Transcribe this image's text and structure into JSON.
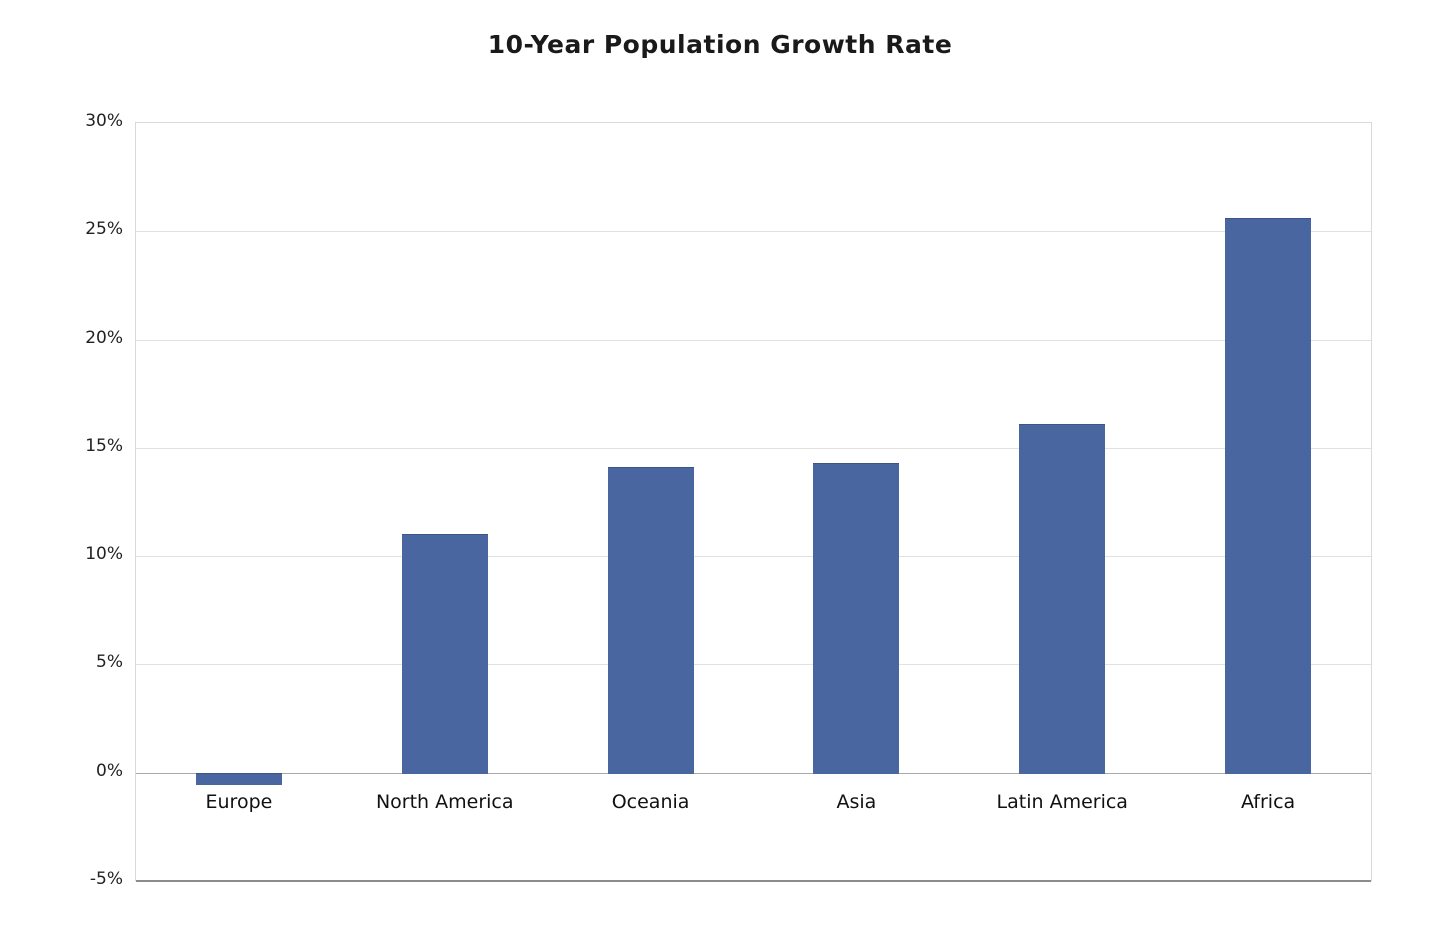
{
  "chart_data": {
    "type": "bar",
    "title": "10-Year Population Growth Rate",
    "categories": [
      "Europe",
      "North America",
      "Oceania",
      "Asia",
      "Latin America",
      "Africa"
    ],
    "values": [
      -0.5,
      11,
      14.1,
      14.3,
      16.1,
      25.6
    ],
    "xlabel": "",
    "ylabel": "",
    "ylim": [
      -5,
      30
    ],
    "ytick_step": 5,
    "ytick_labels": [
      "-5%",
      "0%",
      "5%",
      "10%",
      "15%",
      "20%",
      "25%",
      "30%"
    ],
    "grid": "horizontal",
    "legend": "none",
    "bar_color": "#4a66a0",
    "bar_border_color": "#3c5588"
  }
}
